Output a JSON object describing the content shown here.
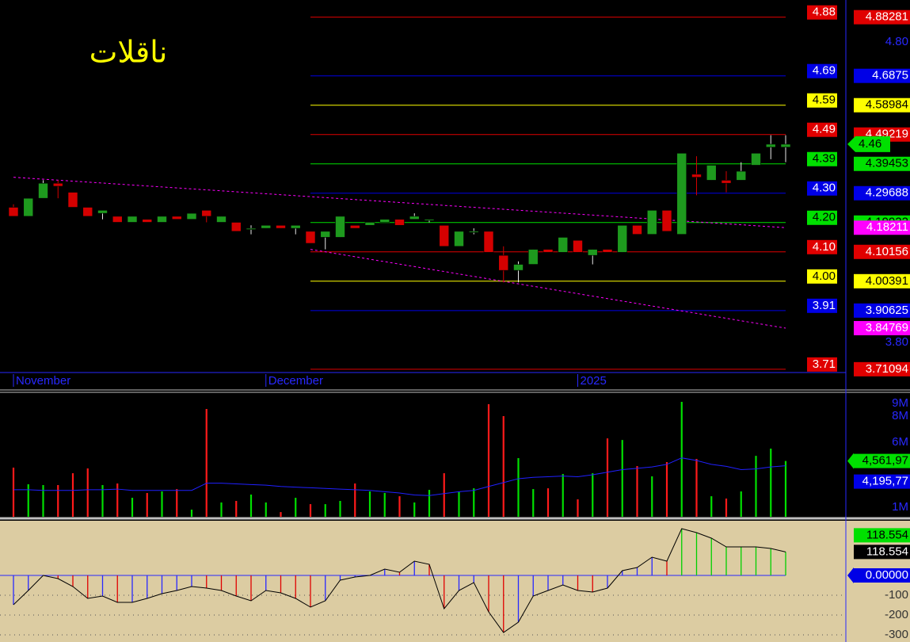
{
  "chart_data": [
    {
      "type": "candlestick",
      "title": "ناقلات",
      "categories": [
        "November",
        null,
        null,
        null,
        null,
        null,
        null,
        null,
        null,
        null,
        null,
        null,
        null,
        null,
        null,
        null,
        null,
        "December",
        null,
        null,
        null,
        null,
        null,
        null,
        null,
        null,
        null,
        null,
        null,
        null,
        null,
        null,
        null,
        null,
        null,
        null,
        null,
        null,
        "2025",
        null,
        null,
        null,
        null,
        null,
        null,
        null,
        null,
        null,
        null,
        null,
        null,
        null,
        null
      ],
      "open": [
        4.25,
        4.22,
        4.28,
        4.33,
        4.3,
        4.25,
        4.23,
        4.22,
        4.2,
        4.21,
        4.2,
        4.22,
        4.21,
        4.24,
        4.2,
        4.2,
        4.18,
        4.18,
        4.19,
        4.18,
        4.17,
        4.15,
        4.15,
        4.19,
        4.19,
        4.2,
        4.21,
        4.21,
        4.21,
        4.19,
        4.12,
        4.17,
        4.17,
        4.09,
        4.04,
        4.06,
        4.11,
        4.1,
        4.14,
        4.09,
        4.11,
        4.1,
        4.19,
        4.16,
        4.24,
        4.16,
        4.36,
        4.34,
        4.34,
        4.34,
        4.39,
        4.45,
        4.45
      ],
      "high": [
        4.26,
        4.28,
        4.34,
        4.34,
        4.3,
        4.25,
        4.24,
        4.22,
        4.22,
        4.21,
        4.22,
        4.22,
        4.23,
        4.24,
        4.22,
        4.2,
        4.19,
        4.19,
        4.19,
        4.19,
        4.17,
        4.17,
        4.22,
        4.19,
        4.2,
        4.21,
        4.21,
        4.23,
        4.21,
        4.19,
        4.17,
        4.18,
        4.17,
        4.12,
        4.07,
        4.11,
        4.11,
        4.15,
        4.14,
        4.11,
        4.11,
        4.19,
        4.19,
        4.24,
        4.24,
        4.43,
        4.42,
        4.39,
        4.37,
        4.4,
        4.43,
        4.49,
        4.49
      ],
      "low": [
        4.22,
        4.22,
        4.28,
        4.28,
        4.25,
        4.22,
        4.21,
        4.2,
        4.2,
        4.2,
        4.2,
        4.21,
        4.21,
        4.2,
        4.2,
        4.17,
        4.16,
        4.18,
        4.18,
        4.16,
        4.13,
        4.11,
        4.15,
        4.18,
        4.19,
        4.2,
        4.19,
        4.21,
        4.2,
        4.12,
        4.12,
        4.16,
        4.1,
        4.0,
        4.0,
        4.06,
        4.1,
        4.1,
        4.1,
        4.06,
        4.1,
        4.1,
        4.16,
        4.16,
        4.17,
        4.16,
        4.29,
        4.34,
        4.3,
        4.34,
        4.39,
        4.41,
        4.4
      ],
      "close": [
        4.22,
        4.28,
        4.33,
        4.32,
        4.25,
        4.22,
        4.24,
        4.2,
        4.22,
        4.2,
        4.22,
        4.21,
        4.23,
        4.22,
        4.22,
        4.17,
        4.18,
        4.19,
        4.18,
        4.19,
        4.13,
        4.17,
        4.22,
        4.18,
        4.2,
        4.21,
        4.19,
        4.22,
        4.21,
        4.12,
        4.17,
        4.17,
        4.1,
        4.04,
        4.06,
        4.11,
        4.1,
        4.15,
        4.1,
        4.11,
        4.1,
        4.19,
        4.16,
        4.24,
        4.17,
        4.43,
        4.35,
        4.39,
        4.33,
        4.37,
        4.43,
        4.46,
        4.46
      ],
      "up_color": "#1e9a1e",
      "down_color": "#d40000",
      "ylim": [
        3.7,
        4.94
      ],
      "yticks": [
        {
          "value": 4.8,
          "label": "4.80"
        },
        {
          "value": 3.8,
          "label": "3.80"
        }
      ],
      "levels": [
        {
          "value": 4.88281,
          "label": "4.88",
          "color": "#e00000"
        },
        {
          "value": 4.6875,
          "label": "4.69",
          "color": "#0000e6"
        },
        {
          "value": 4.58984,
          "label": "4.59",
          "color": "#ffff00"
        },
        {
          "value": 4.49219,
          "label": "4.49",
          "color": "#e00000"
        },
        {
          "value": 4.39453,
          "label": "4.39",
          "color": "#00e000"
        },
        {
          "value": 4.29688,
          "label": "4.30",
          "color": "#0000e6"
        },
        {
          "value": 4.19922,
          "label": "4.20",
          "color": "#00e000"
        },
        {
          "value": 4.10156,
          "label": "4.10",
          "color": "#e00000"
        },
        {
          "value": 4.00391,
          "label": "4.00",
          "color": "#ffff00"
        },
        {
          "value": 3.90625,
          "label": "3.91",
          "color": "#0000e6"
        },
        {
          "value": 3.71094,
          "label": "3.71",
          "color": "#e00000"
        }
      ],
      "trendlines": [
        {
          "start": [
            0,
            4.35
          ],
          "end": [
            52,
            4.18211
          ],
          "color": "#ff00ff"
        },
        {
          "start": [
            20,
            4.11
          ],
          "end": [
            52,
            3.84769
          ],
          "color": "#ff00ff"
        }
      ],
      "last": {
        "value": 4.46,
        "color": "#00e000"
      }
    },
    {
      "type": "bar",
      "values": [
        4050000,
        2770000,
        2710000,
        2710000,
        3620000,
        3990000,
        2710000,
        2830000,
        1730000,
        2100000,
        2220000,
        2400000,
        820000,
        8560000,
        1370000,
        1490000,
        1980000,
        1370000,
        630000,
        1730000,
        1240000,
        1240000,
        1490000,
        2830000,
        2220000,
        2100000,
        1850000,
        1370000,
        2340000,
        3620000,
        2220000,
        2460000,
        8930000,
        8010000,
        4780000,
        2400000,
        2460000,
        3560000,
        1610000,
        3620000,
        6300000,
        6180000,
        4170000,
        3380000,
        4480000,
        9110000,
        4720000,
        1850000,
        1670000,
        2220000,
        4960000,
        5510000,
        4561970
      ],
      "average": {
        "color": "#2020ff",
        "values": [
          2350000,
          2350000,
          2300000,
          2300000,
          2300000,
          2350000,
          2350000,
          2400000,
          2300000,
          2300000,
          2300000,
          2300000,
          2300000,
          2850000,
          2850000,
          2800000,
          2750000,
          2700000,
          2600000,
          2550000,
          2500000,
          2450000,
          2400000,
          2350000,
          2300000,
          2200000,
          2100000,
          1950000,
          1900000,
          2050000,
          2200000,
          2300000,
          2600000,
          2900000,
          3200000,
          3300000,
          3350000,
          3400000,
          3350000,
          3500000,
          3700000,
          3900000,
          4000000,
          4100000,
          4300000,
          4800000,
          4600000,
          4300000,
          4150000,
          3900000,
          3950000,
          4100000,
          4195770
        ]
      },
      "ylim": [
        270000,
        9720000
      ],
      "yticks": [
        {
          "value": 9000000,
          "label": "9M"
        },
        {
          "value": 8000000,
          "label": "8M"
        },
        {
          "value": 6000000,
          "label": "6M"
        },
        {
          "value": 1000000,
          "label": "1M"
        }
      ],
      "markers": [
        {
          "value": 4561970,
          "label": "4,561,97",
          "color": "#00e000"
        },
        {
          "value": 4195770,
          "label": "4,195,77",
          "color": "#0000e6"
        }
      ]
    },
    {
      "type": "line",
      "values": [
        -148,
        -76,
        0,
        -16,
        -56,
        -116,
        -104,
        -136,
        -136,
        -116,
        -92,
        -76,
        -56,
        -64,
        -76,
        -104,
        -128,
        -76,
        -88,
        -116,
        -160,
        -128,
        -24,
        -8,
        0,
        32,
        16,
        72,
        56,
        -168,
        -76,
        -36,
        -184,
        -288,
        -236,
        -104,
        -76,
        -48,
        -76,
        -84,
        -64,
        24,
        40,
        92,
        72,
        236,
        216,
        188,
        144,
        144,
        144,
        136,
        118.554
      ],
      "color": "#000000",
      "ylim": [
        -336,
        276
      ],
      "yticks": [
        -100,
        -200,
        -300
      ],
      "grid": true,
      "markers": [
        {
          "value": 118.554,
          "color": "#00e000"
        },
        {
          "value": 118.554,
          "color": "#000000"
        },
        {
          "value": 0,
          "label": "0.00000",
          "color": "#0000e6"
        }
      ]
    }
  ]
}
